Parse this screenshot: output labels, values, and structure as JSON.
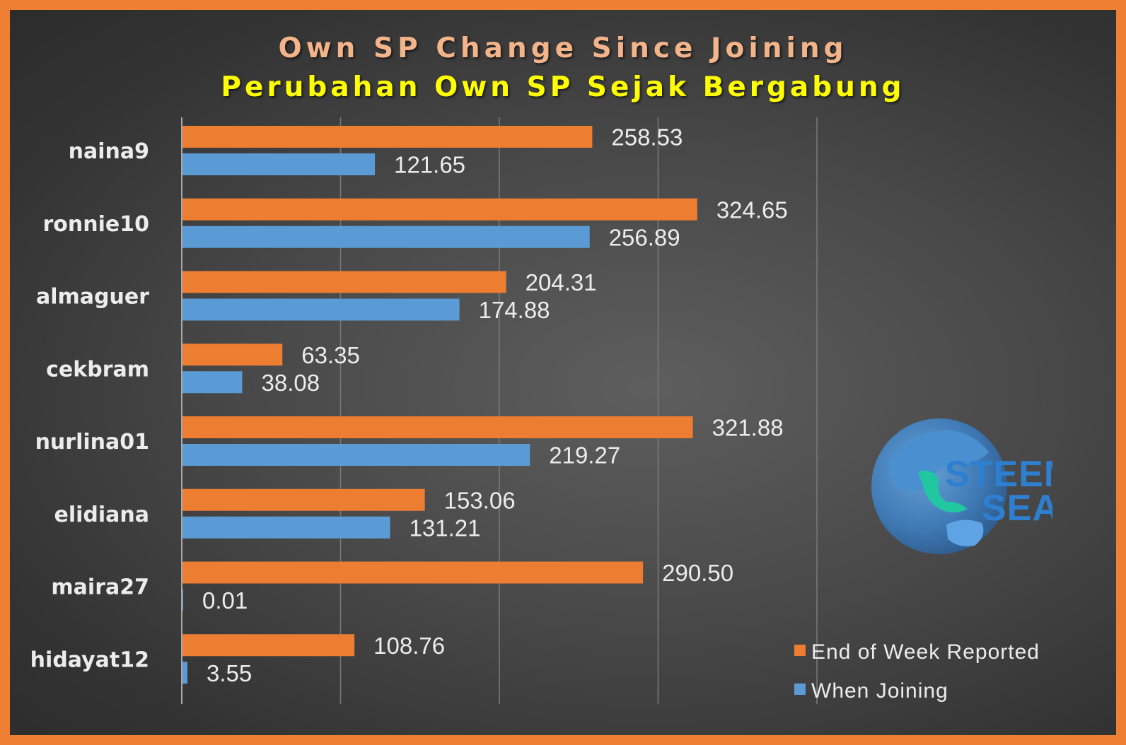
{
  "chart_data": {
    "type": "bar",
    "orientation": "horizontal",
    "title": "Own SP Change Since Joining",
    "subtitle": "Perubahan Own SP Sejak Bergabung",
    "categories": [
      "naina9",
      "ronnie10",
      "almaguer",
      "cekbram",
      "nurlina01",
      "elidiana",
      "maira27",
      "hidayat12"
    ],
    "series": [
      {
        "name": "End of Week Reported",
        "color": "#ed7d31",
        "values": [
          258.53,
          324.65,
          204.31,
          63.35,
          321.88,
          153.06,
          290.5,
          108.76
        ],
        "labels": [
          "258.53",
          "324.65",
          "204.31",
          "63.35",
          "321.88",
          "153.06",
          "290.50",
          "108.76"
        ]
      },
      {
        "name": "When Joining",
        "color": "#5b9bd5",
        "values": [
          121.65,
          256.89,
          174.88,
          38.08,
          219.27,
          131.21,
          0.01,
          3.55
        ],
        "labels": [
          "121.65",
          "256.89",
          "174.88",
          "38.08",
          "219.27",
          "131.21",
          "0.01",
          "3.55"
        ]
      }
    ],
    "xlim": [
      0,
      400
    ],
    "grid": true,
    "legend": "bottom-right"
  },
  "logo": {
    "line1": "STEEM",
    "line2": "SEA"
  },
  "colors": {
    "border": "#ee7f33",
    "title": "#f4b48a",
    "subtitle": "#ffff00"
  }
}
